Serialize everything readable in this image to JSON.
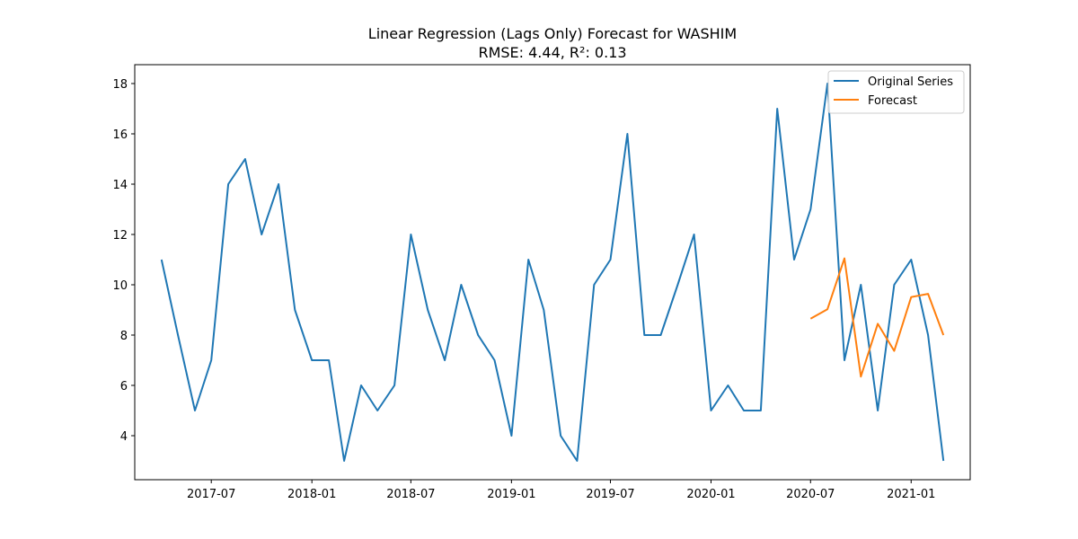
{
  "chart_data": {
    "type": "line",
    "title": "Linear Regression (Lags Only) Forecast for WASHIM",
    "subtitle": "RMSE: 4.44, R²: 0.13",
    "xlabel": "",
    "ylabel": "",
    "x_range": [
      "2017-02-11",
      "2021-04-19"
    ],
    "ylim": [
      2.25,
      18.75
    ],
    "x_ticks": [
      "2017-07",
      "2018-01",
      "2018-07",
      "2019-01",
      "2019-07",
      "2020-01",
      "2020-07",
      "2021-01"
    ],
    "y_ticks": [
      4,
      6,
      8,
      10,
      12,
      14,
      16,
      18
    ],
    "grid": false,
    "legend_position": "top-right",
    "series": [
      {
        "name": "Original Series",
        "color": "#1f77b4",
        "x": [
          "2017-04",
          "2017-05",
          "2017-06",
          "2017-07",
          "2017-08",
          "2017-09",
          "2017-10",
          "2017-11",
          "2017-12",
          "2018-01",
          "2018-02",
          "2018-03",
          "2018-04",
          "2018-05",
          "2018-06",
          "2018-07",
          "2018-08",
          "2018-09",
          "2018-10",
          "2018-11",
          "2018-12",
          "2019-01",
          "2019-02",
          "2019-03",
          "2019-04",
          "2019-05",
          "2019-06",
          "2019-07",
          "2019-08",
          "2019-09",
          "2019-10",
          "2019-11",
          "2019-12",
          "2020-01",
          "2020-02",
          "2020-03",
          "2020-04",
          "2020-05",
          "2020-06",
          "2020-07",
          "2020-08",
          "2020-09",
          "2020-10",
          "2020-11",
          "2020-12",
          "2021-01",
          "2021-02",
          "2021-03"
        ],
        "values": [
          11,
          8,
          5,
          7,
          14,
          15,
          12,
          14,
          9,
          7,
          7,
          3,
          6,
          5,
          6,
          12,
          9,
          7,
          10,
          8,
          7,
          4,
          11,
          9,
          4,
          3,
          10,
          11,
          16,
          8,
          8,
          10,
          12,
          5,
          6,
          5,
          5,
          17,
          11,
          13,
          18,
          7,
          10,
          5,
          10,
          11,
          8,
          3
        ]
      },
      {
        "name": "Forecast",
        "color": "#ff7f0e",
        "x": [
          "2020-07",
          "2020-08",
          "2020-09",
          "2020-10",
          "2020-11",
          "2020-12",
          "2021-01",
          "2021-02",
          "2021-03"
        ],
        "values": [
          8.65,
          9.03,
          11.05,
          6.35,
          8.45,
          7.37,
          9.51,
          9.64,
          8.0
        ]
      }
    ]
  }
}
